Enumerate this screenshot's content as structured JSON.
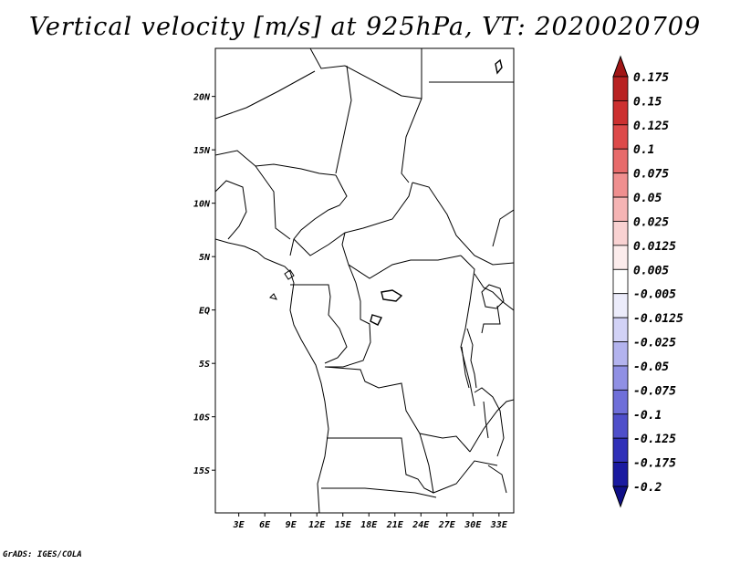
{
  "title": "Vertical velocity [m/s] at 925hPa, VT: 2020020709",
  "footer": "GrADS: IGES/COLA",
  "map": {
    "lat_ticks": [
      "20N",
      "15N",
      "10N",
      "5N",
      "EQ",
      "5S",
      "10S",
      "15S"
    ],
    "lon_ticks": [
      "3E",
      "6E",
      "9E",
      "12E",
      "15E",
      "18E",
      "21E",
      "24E",
      "27E",
      "30E",
      "33E"
    ],
    "lat_range": [
      -19,
      24.5
    ],
    "lon_range": [
      0.3,
      34.7
    ],
    "field_pattern": "convective noise; red = ascent, blue = descent; weakest over Congo basin and Angola/Zambia"
  },
  "colorbar": {
    "labels": [
      "0.175",
      "0.15",
      "0.125",
      "0.1",
      "0.075",
      "0.05",
      "0.025",
      "0.0125",
      "0.005",
      "-0.005",
      "-0.0125",
      "-0.025",
      "-0.05",
      "-0.075",
      "-0.1",
      "-0.125",
      "-0.175",
      "-0.2"
    ],
    "colors": [
      "#a01616",
      "#b82222",
      "#cc3030",
      "#dd4a4a",
      "#e76b6b",
      "#ef8f8f",
      "#f5b4b4",
      "#f9d2d2",
      "#fcecec",
      "#ffffff",
      "#ececfb",
      "#d2d2f6",
      "#b3b3ee",
      "#9090e4",
      "#6f6fd9",
      "#4f4fca",
      "#3030b8",
      "#1a1aa0",
      "#0f0f88"
    ]
  }
}
